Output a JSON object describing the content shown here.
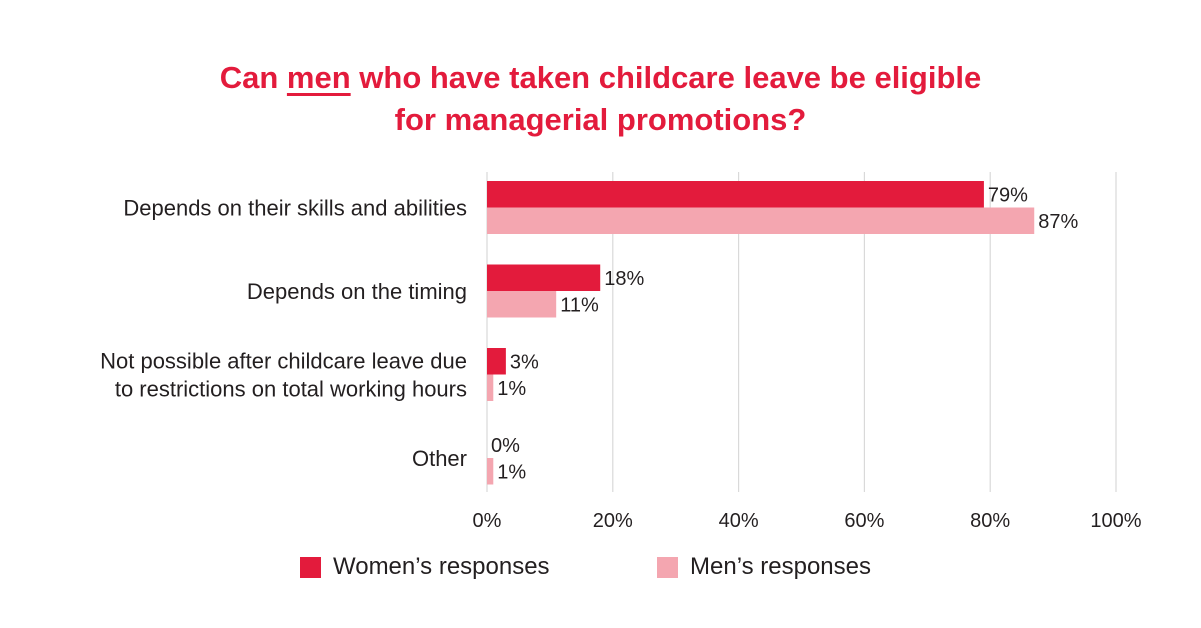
{
  "title": {
    "line1_pre": "Can ",
    "line1_emph": "men",
    "line1_post": " who have taken childcare leave be eligible",
    "line2": "for managerial promotions?"
  },
  "colors": {
    "women": "#e31b3c",
    "men": "#f4a6b0",
    "title": "#e31b3c",
    "grid": "#d9d9d9"
  },
  "legend": {
    "women": "Women’s responses",
    "men": "Men’s responses"
  },
  "chart_data": {
    "type": "bar",
    "orientation": "horizontal",
    "categories": [
      [
        "Depends on their skills and abilities"
      ],
      [
        "Depends on the timing"
      ],
      [
        "Not possible after childcare leave due",
        "to restrictions on total working hours"
      ],
      [
        "Other"
      ]
    ],
    "series": [
      {
        "name": "Women’s responses",
        "values": [
          79,
          18,
          3,
          0
        ],
        "labels": [
          "79%",
          "18%",
          "3%",
          "0%"
        ]
      },
      {
        "name": "Men’s responses",
        "values": [
          87,
          11,
          1,
          1
        ],
        "labels": [
          "87%",
          "11%",
          "1%",
          "1%"
        ]
      }
    ],
    "xlim": [
      0,
      100
    ],
    "xticks": [
      0,
      20,
      40,
      60,
      80,
      100
    ],
    "xtick_labels": [
      "0%",
      "20%",
      "40%",
      "60%",
      "80%",
      "100%"
    ],
    "grid": true,
    "legend_position": "bottom"
  }
}
